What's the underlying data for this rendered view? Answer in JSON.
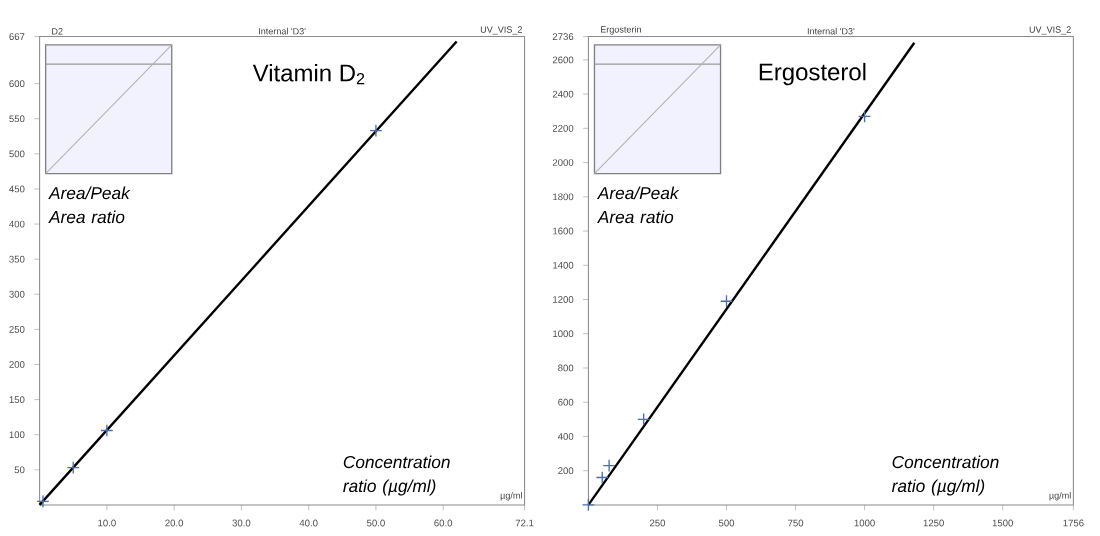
{
  "chart_data": [
    {
      "type": "scatter",
      "title": "Vitamin D$_{2}$",
      "xlabel": "Concentration ratio (µg/ml)",
      "ylabel": "Area/Peak Area ratio",
      "annotations": [
        "D2",
        "Internal 'D3'",
        "UV_VIS_2",
        "µg/ml"
      ],
      "series": [
        {
          "type": "line",
          "color": "#000000",
          "x": [
            0,
            62
          ],
          "values": [
            0,
            660
          ],
          "marker": "none"
        },
        {
          "color": "#4a6fa5",
          "x": [
            0.5,
            5,
            10,
            50
          ],
          "values": [
            5,
            53,
            106,
            533
          ],
          "marker": "cross"
        }
      ],
      "xlim": [
        0,
        72.1
      ],
      "ylim": [
        0,
        667
      ],
      "xticks": [
        {
          "value": 10,
          "label": "10.0"
        },
        {
          "value": 20,
          "label": "20.0"
        },
        {
          "value": 30,
          "label": "30.0"
        },
        {
          "value": 40,
          "label": "40.0"
        },
        {
          "value": 50,
          "label": "50.0"
        },
        {
          "value": 60,
          "label": "60.0"
        },
        72.1
      ],
      "yticks": [
        50,
        100,
        150,
        200,
        250,
        300,
        350,
        400,
        450,
        500,
        550,
        600,
        667
      ]
    },
    {
      "type": "scatter",
      "title": "Ergosterol",
      "xlabel": "Concentration ratio (µg/ml)",
      "ylabel": "Area/Peak Area ratio",
      "annotations": [
        "Ergosterin",
        "Internal 'D3'",
        "UV_VIS_2",
        "µg/ml"
      ],
      "series": [
        {
          "type": "line",
          "color": "#000000",
          "x": [
            0,
            1180
          ],
          "values": [
            0,
            2700
          ],
          "marker": "none"
        },
        {
          "color": "#4a6fa5",
          "x": [
            0,
            50,
            75,
            200,
            500,
            1000
          ],
          "values": [
            0,
            160,
            230,
            500,
            1190,
            2270
          ],
          "marker": "cross"
        }
      ],
      "xlim": [
        0,
        1756
      ],
      "ylim": [
        0,
        2736
      ],
      "xticks": [
        250,
        500,
        750,
        1000,
        1250,
        1500,
        1756
      ],
      "yticks": [
        200,
        400,
        600,
        800,
        1000,
        1200,
        1400,
        1600,
        1800,
        2000,
        2200,
        2400,
        2600,
        2736
      ]
    }
  ]
}
